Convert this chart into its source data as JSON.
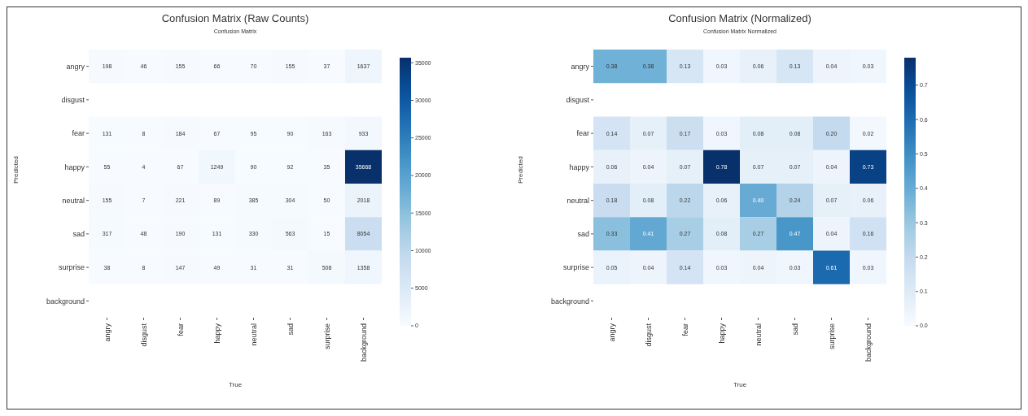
{
  "chart_data": [
    {
      "type": "heatmap",
      "title": "Confusion Matrix (Raw Counts)",
      "subtitle": "Confusion Matrix",
      "xlabel": "True",
      "ylabel": "Predicted",
      "categories": [
        "angry",
        "disgust",
        "fear",
        "happy",
        "neutral",
        "sad",
        "surprise",
        "background"
      ],
      "y_categories": [
        "angry",
        "disgust",
        "fear",
        "happy",
        "neutral",
        "sad",
        "surprise",
        "background"
      ],
      "cells": [
        [
          198,
          46,
          155,
          66,
          70,
          155,
          37,
          1637
        ],
        [
          null,
          null,
          null,
          null,
          null,
          null,
          null,
          null
        ],
        [
          131,
          8,
          184,
          67,
          95,
          90,
          163,
          933
        ],
        [
          55,
          4,
          67,
          1249,
          90,
          92,
          35,
          35668
        ],
        [
          155,
          7,
          221,
          89,
          385,
          304,
          50,
          2018
        ],
        [
          317,
          48,
          190,
          131,
          330,
          563,
          15,
          8054
        ],
        [
          38,
          8,
          147,
          49,
          31,
          31,
          508,
          1358
        ],
        [
          null,
          null,
          null,
          null,
          null,
          null,
          null,
          null
        ]
      ],
      "data_labels": true,
      "clim": [
        0,
        35668
      ],
      "cticks": [
        0,
        5000,
        10000,
        15000,
        20000,
        25000,
        30000,
        35000
      ]
    },
    {
      "type": "heatmap",
      "title": "Confusion Matrix (Normalized)",
      "subtitle": "Confusion Matrix Normalized",
      "xlabel": "True",
      "ylabel": "Predicted",
      "categories": [
        "angry",
        "disgust",
        "fear",
        "happy",
        "neutral",
        "sad",
        "surprise",
        "background"
      ],
      "y_categories": [
        "angry",
        "disgust",
        "fear",
        "happy",
        "neutral",
        "sad",
        "surprise",
        "background"
      ],
      "cells": [
        [
          0.38,
          0.38,
          0.13,
          0.03,
          0.06,
          0.13,
          0.04,
          0.03
        ],
        [
          null,
          null,
          null,
          null,
          null,
          null,
          null,
          null
        ],
        [
          0.14,
          0.07,
          0.17,
          0.03,
          0.08,
          0.08,
          0.2,
          0.02
        ],
        [
          0.06,
          0.04,
          0.07,
          0.78,
          0.07,
          0.07,
          0.04,
          0.73
        ],
        [
          0.18,
          0.08,
          0.22,
          0.06,
          0.4,
          0.24,
          0.07,
          0.06
        ],
        [
          0.33,
          0.41,
          0.27,
          0.08,
          0.27,
          0.47,
          0.04,
          0.16
        ],
        [
          0.05,
          0.04,
          0.14,
          0.03,
          0.04,
          0.03,
          0.61,
          0.03
        ],
        [
          null,
          null,
          null,
          null,
          null,
          null,
          null,
          null
        ]
      ],
      "cell_labels": [
        [
          "0.38",
          "0.38",
          "0.13",
          "0.03",
          "0.06",
          "0.13",
          "0.04",
          "0.03"
        ],
        [
          null,
          null,
          null,
          null,
          null,
          null,
          null,
          null
        ],
        [
          "0.14",
          "0.07",
          "0.17",
          "0.03",
          "0.08",
          "0.08",
          "0.20",
          "0.02"
        ],
        [
          "0.06",
          "0.04",
          "0.07",
          "0.78",
          "0.07",
          "0.07",
          "0.04",
          "0.73"
        ],
        [
          "0.18",
          "0.08",
          "0.22",
          "0.06",
          "0.40",
          "0.24",
          "0.07",
          "0.06"
        ],
        [
          "0.33",
          "0.41",
          "0.27",
          "0.08",
          "0.27",
          "0.47",
          "0.04",
          "0.16"
        ],
        [
          "0.05",
          "0.04",
          "0.14",
          "0.03",
          "0.04",
          "0.03",
          "0.61",
          "0.03"
        ],
        [
          null,
          null,
          null,
          null,
          null,
          null,
          null,
          null
        ]
      ],
      "clim": [
        0,
        0.78
      ],
      "cticks": [
        {
          "value": 0,
          "label": "0.0"
        },
        {
          "value": 0.1,
          "label": "0.1"
        },
        {
          "value": 0.2,
          "label": "0.2"
        },
        {
          "value": 0.3,
          "label": "0.3"
        },
        {
          "value": 0.4,
          "label": "0.4"
        },
        {
          "value": 0.5,
          "label": "0.5"
        },
        {
          "value": 0.6,
          "label": "0.6"
        },
        {
          "value": 0.7,
          "label": "0.7"
        }
      ]
    }
  ]
}
